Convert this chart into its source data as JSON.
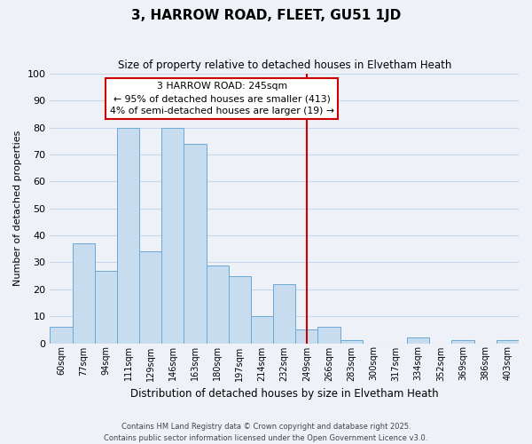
{
  "title": "3, HARROW ROAD, FLEET, GU51 1JD",
  "subtitle": "Size of property relative to detached houses in Elvetham Heath",
  "xlabel": "Distribution of detached houses by size in Elvetham Heath",
  "ylabel": "Number of detached properties",
  "bin_labels": [
    "60sqm",
    "77sqm",
    "94sqm",
    "111sqm",
    "129sqm",
    "146sqm",
    "163sqm",
    "180sqm",
    "197sqm",
    "214sqm",
    "232sqm",
    "249sqm",
    "266sqm",
    "283sqm",
    "300sqm",
    "317sqm",
    "334sqm",
    "352sqm",
    "369sqm",
    "386sqm",
    "403sqm"
  ],
  "bar_heights": [
    6,
    37,
    27,
    80,
    34,
    80,
    74,
    29,
    25,
    10,
    22,
    5,
    6,
    1,
    0,
    0,
    2,
    0,
    1,
    0,
    1
  ],
  "bar_color": "#c8dcf0",
  "bar_edge_color": "#6aaad4",
  "grid_color": "#c8d8ea",
  "red_line_index": 11,
  "red_line_color": "#cc0000",
  "annotation_title": "3 HARROW ROAD: 245sqm",
  "annotation_line1": "← 95% of detached houses are smaller (413)",
  "annotation_line2": "4% of semi-detached houses are larger (19) →",
  "annotation_box_color": "#ffffff",
  "annotation_border_color": "#cc0000",
  "footnote1": "Contains HM Land Registry data © Crown copyright and database right 2025.",
  "footnote2": "Contains public sector information licensed under the Open Government Licence v3.0.",
  "ylim": [
    0,
    100
  ],
  "yticks": [
    0,
    10,
    20,
    30,
    40,
    50,
    60,
    70,
    80,
    90,
    100
  ],
  "bg_color": "#eef2f8"
}
